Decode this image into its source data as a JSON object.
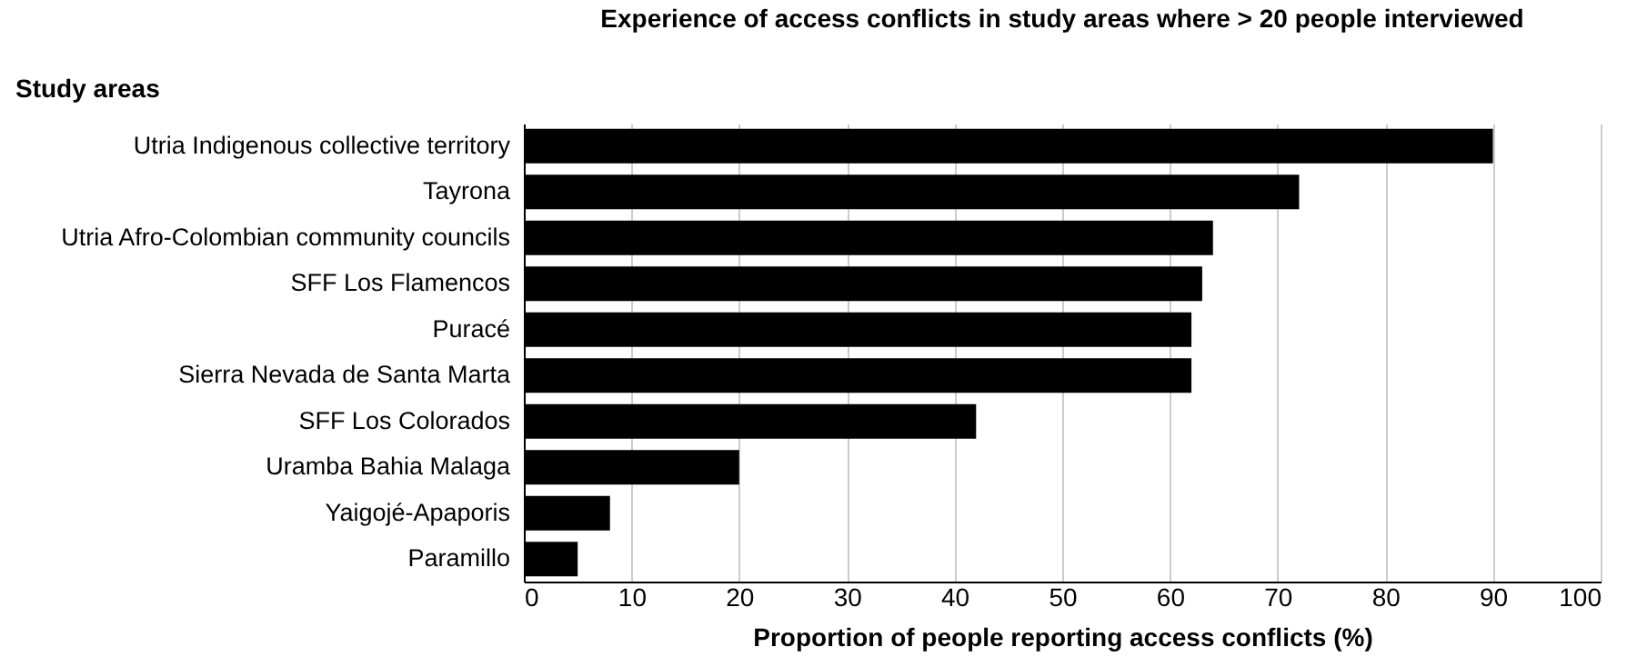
{
  "chart_data": {
    "type": "bar",
    "orientation": "horizontal",
    "title": "Experience of access conflicts in study areas where > 20 people interviewed",
    "ylabel": "Study areas",
    "xlabel": "Proportion of people reporting access conflicts (%)",
    "categories": [
      "Utria Indigenous collective territory",
      "Tayrona",
      "Utria Afro-Colombian community councils",
      "SFF Los Flamencos",
      "Puracé",
      "Sierra Nevada de Santa Marta",
      "SFF Los Colorados",
      "Uramba Bahia Malaga",
      "Yaigojé-Apaporis",
      "Paramillo"
    ],
    "values": [
      90,
      72,
      64,
      63,
      62,
      62,
      42,
      20,
      8,
      5
    ],
    "color": "#000000",
    "xlim": [
      0,
      100
    ],
    "xticks": [
      0,
      10,
      20,
      30,
      40,
      50,
      60,
      70,
      80,
      90,
      100
    ],
    "grid": "x"
  }
}
